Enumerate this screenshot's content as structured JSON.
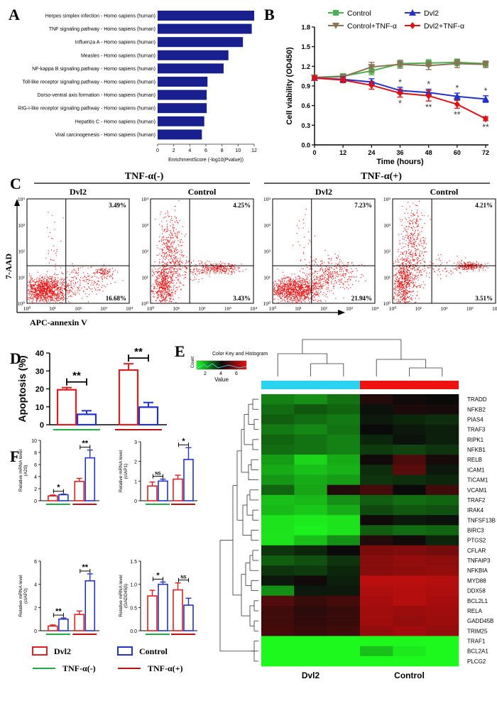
{
  "panel_labels": {
    "A": "A",
    "B": "B",
    "C": "C",
    "D": "D",
    "E": "E",
    "F": "F"
  },
  "chart_data": [
    {
      "id": "A",
      "type": "bar",
      "orientation": "horizontal",
      "categories": [
        "Herpes simplex infection - Homo sapiens (human)",
        "TNF signaling pathway - Homo sapiens (human)",
        "Influenza A - Homo sapiens (human)",
        "Measles - Homo sapiens (human)",
        "NF-kappa B signaling pathway - Homo sapiens (human)",
        "Toll-like receptor signaling pathway - Homo sapiens (human)",
        "Dorso-ventral axis formation - Homo sapiens (human)",
        "RIG-I-like receptor signaling pathway - Homo sapiens (human)",
        "Hepatitis C - Homo sapiens (human)",
        "Viral carcinogenesis - Homo sapiens (human)"
      ],
      "values": [
        12.0,
        11.7,
        10.6,
        8.8,
        8.2,
        6.2,
        6.1,
        6.1,
        5.8,
        5.5
      ],
      "xlabel": "EnrichmentScore (-log10(Pvalue))",
      "xlim": [
        0,
        12
      ],
      "xticks": [
        0,
        2,
        4,
        6,
        8,
        10,
        12
      ],
      "color": "#1a1f8f"
    },
    {
      "id": "B",
      "type": "line",
      "x": [
        0,
        12,
        24,
        36,
        48,
        60,
        72
      ],
      "xlabel": "Time (hours)",
      "ylabel": "Cell viability (OD450)",
      "xlim": [
        0,
        72
      ],
      "ylim": [
        0,
        1.8
      ],
      "yticks": [
        0.0,
        0.3,
        0.6,
        0.9,
        1.2,
        1.5,
        1.8
      ],
      "series": [
        {
          "name": "Control",
          "values": [
            1.03,
            1.05,
            1.13,
            1.24,
            1.25,
            1.26,
            1.24
          ],
          "err": [
            0.03,
            0.03,
            0.06,
            0.05,
            0.05,
            0.05,
            0.04
          ],
          "color": "#4caf50",
          "marker": "square"
        },
        {
          "name": "Control+TNF-α",
          "values": [
            1.03,
            1.04,
            1.19,
            1.23,
            1.21,
            1.24,
            1.23
          ],
          "err": [
            0.03,
            0.03,
            0.07,
            0.06,
            0.06,
            0.06,
            0.05
          ],
          "color": "#8b7355",
          "marker": "triangle-down"
        },
        {
          "name": "Dvl2",
          "values": [
            1.02,
            1.0,
            0.96,
            0.83,
            0.8,
            0.74,
            0.7
          ],
          "err": [
            0.03,
            0.04,
            0.05,
            0.05,
            0.05,
            0.05,
            0.05
          ],
          "color": "#2233cc",
          "marker": "triangle-up"
        },
        {
          "name": "Dvl2+TNF-α",
          "values": [
            1.02,
            0.99,
            0.91,
            0.79,
            0.75,
            0.62,
            0.4
          ],
          "err": [
            0.03,
            0.04,
            0.06,
            0.06,
            0.08,
            0.06,
            0.03
          ],
          "color": "#dd1111",
          "marker": "diamond"
        }
      ],
      "annotations": [
        {
          "x": 36,
          "above": "*",
          "below": "*"
        },
        {
          "x": 48,
          "above": "*",
          "below": "**"
        },
        {
          "x": 60,
          "above": "*",
          "below": "**"
        },
        {
          "x": 72,
          "above": "*",
          "below": "**"
        }
      ]
    },
    {
      "id": "C",
      "type": "scatter",
      "title_neg": "TNF-α(-)",
      "title_pos": "TNF-α(+)",
      "xlabel": "APC-annexin V",
      "ylabel": "7-AAD",
      "axis_ticks": [
        "10⁰",
        "10¹",
        "10²",
        "10³",
        "10⁴"
      ],
      "plots": [
        {
          "label": "Dvl2",
          "upper_right": "3.49%",
          "lower_right": "16.68%"
        },
        {
          "label": "Control",
          "upper_right": "4.25%",
          "lower_right": "3.43%"
        },
        {
          "label": "Dvl2",
          "upper_right": "7.23%",
          "lower_right": "21.94%"
        },
        {
          "label": "Control",
          "upper_right": "4.21%",
          "lower_right": "3.51%"
        }
      ]
    },
    {
      "id": "D",
      "type": "bar",
      "ylabel": "Apoptosis (%)",
      "ylim": [
        0,
        40
      ],
      "yticks": [
        0,
        10,
        20,
        30,
        40
      ],
      "groups": [
        "TNF-α(-)",
        "TNF-α(+)"
      ],
      "series": [
        {
          "name": "Dvl2",
          "values": [
            19.5,
            30.5
          ],
          "err": [
            1.2,
            3.5
          ],
          "color": "#e02020"
        },
        {
          "name": "Control",
          "values": [
            5.8,
            9.8
          ],
          "err": [
            2.0,
            2.6
          ],
          "color": "#2233cc"
        }
      ],
      "significance": [
        "**",
        "**"
      ]
    },
    {
      "id": "E",
      "type": "heatmap",
      "color_key_title": "Color Key and Histogram",
      "color_key_ylabel": "Count",
      "color_key_xlabel": "Value",
      "color_key_ticks": [
        2,
        4,
        6
      ],
      "col_groups": [
        "Dvl2",
        "Control"
      ],
      "genes": [
        "TRADD",
        "NFKB2",
        "PIAS4",
        "TRAF3",
        "RIPK1",
        "NFKB1",
        "RELB",
        "ICAM1",
        "TICAM1",
        "VCAM1",
        "TRAF2",
        "IRAK4",
        "TNFSF13B",
        "BIRC3",
        "PTGS2",
        "CFLAR",
        "TNFAIP3",
        "NFKBIA",
        "MYD88",
        "DDX58",
        "BCL2L1",
        "RELA",
        "GADD45B",
        "TRIM25",
        "TRAF1",
        "BCL2A1",
        "PLCG2"
      ],
      "values": [
        [
          1.8,
          1.6,
          2.0,
          3.9,
          3.6,
          3.5
        ],
        [
          2.1,
          2.4,
          2.2,
          3.4,
          3.8,
          3.7
        ],
        [
          2.3,
          2.1,
          1.9,
          3.3,
          3.1,
          3.0
        ],
        [
          1.9,
          1.7,
          2.0,
          3.5,
          3.3,
          3.2
        ],
        [
          2.2,
          2.0,
          1.8,
          3.1,
          3.4,
          3.2
        ],
        [
          2.1,
          2.0,
          1.8,
          2.8,
          2.7,
          2.9
        ],
        [
          1.4,
          0.6,
          1.2,
          3.6,
          4.5,
          3.7
        ],
        [
          1.2,
          0.9,
          1.1,
          3.0,
          4.7,
          3.3
        ],
        [
          1.5,
          1.2,
          1.4,
          2.9,
          3.0,
          3.1
        ],
        [
          2.2,
          1.3,
          3.9,
          4.4,
          3.5,
          4.3
        ],
        [
          0.9,
          1.0,
          1.6,
          2.3,
          2.1,
          2.2
        ],
        [
          1.0,
          0.8,
          1.2,
          2.6,
          2.4,
          2.5
        ],
        [
          0.4,
          0.3,
          0.4,
          3.6,
          3.3,
          3.4
        ],
        [
          0.4,
          0.2,
          0.4,
          2.3,
          2.1,
          2.2
        ],
        [
          0.4,
          0.9,
          1.6,
          3.9,
          3.6,
          3.1
        ],
        [
          2.9,
          3.1,
          3.5,
          5.2,
          5.3,
          5.1
        ],
        [
          2.3,
          2.5,
          2.9,
          5.4,
          5.6,
          5.5
        ],
        [
          2.9,
          2.8,
          3.1,
          5.4,
          5.5,
          5.6
        ],
        [
          3.3,
          3.6,
          3.2,
          6.2,
          6.2,
          6.1
        ],
        [
          1.6,
          3.3,
          3.3,
          6.0,
          6.1,
          6.0
        ],
        [
          4.6,
          4.2,
          4.4,
          5.9,
          6.1,
          5.9
        ],
        [
          4.3,
          4.0,
          4.2,
          5.8,
          5.7,
          5.8
        ],
        [
          4.3,
          4.1,
          4.2,
          5.8,
          5.6,
          5.7
        ],
        [
          4.4,
          4.2,
          4.3,
          5.6,
          5.8,
          5.6
        ],
        [
          0.1,
          0.1,
          0.1,
          0.1,
          0.1,
          0.1
        ],
        [
          0.1,
          0.1,
          0.1,
          0.9,
          0.3,
          0.1
        ],
        [
          0.1,
          0.1,
          0.1,
          0.1,
          0.1,
          0.1
        ]
      ]
    },
    {
      "id": "F",
      "type": "bar",
      "legend": [
        {
          "name": "Dvl2",
          "color": "#e02020"
        },
        {
          "name": "Control",
          "color": "#2233cc"
        }
      ],
      "group_legend": [
        {
          "name": "TNF-α(-)",
          "color": "#22aa44"
        },
        {
          "name": "TNF-α(+)",
          "color": "#bb1111"
        }
      ],
      "subplots": [
        {
          "ylabel": "Relative mRNA  level",
          "gene": "(A20)",
          "ylim": [
            0,
            10
          ],
          "yticks": [
            0,
            2,
            4,
            6,
            8,
            10
          ],
          "dvl2": [
            0.8,
            3.2
          ],
          "dvl2_err": [
            0.15,
            0.5
          ],
          "control": [
            1.0,
            7.1
          ],
          "control_err": [
            0.1,
            1.3
          ],
          "sig": [
            "*",
            "**"
          ]
        },
        {
          "ylabel": "Relative mRNA  level",
          "gene": "(cIAP1)",
          "ylim": [
            0,
            3
          ],
          "yticks": [
            0,
            1,
            2,
            3
          ],
          "dvl2": [
            0.75,
            1.1
          ],
          "dvl2_err": [
            0.2,
            0.2
          ],
          "control": [
            1.0,
            2.1
          ],
          "control_err": [
            0.1,
            0.6
          ],
          "sig": [
            "NS",
            "*"
          ]
        },
        {
          "ylabel": "Relative mRNA  level",
          "gene": "(cIAP2)",
          "ylim": [
            0,
            6
          ],
          "yticks": [
            0,
            2,
            4,
            6
          ],
          "dvl2": [
            0.4,
            1.4
          ],
          "dvl2_err": [
            0.1,
            0.3
          ],
          "control": [
            1.0,
            4.3
          ],
          "control_err": [
            0.1,
            0.6
          ],
          "sig": [
            "**",
            "**"
          ]
        },
        {
          "ylabel": "Relative mRNA  level",
          "gene": "(GADD45β)",
          "ylim": [
            0,
            1.5
          ],
          "yticks": [
            0.0,
            0.5,
            1.0,
            1.5
          ],
          "dvl2": [
            0.75,
            0.88
          ],
          "dvl2_err": [
            0.12,
            0.15
          ],
          "control": [
            1.0,
            0.55
          ],
          "control_err": [
            0.05,
            0.15
          ],
          "sig": [
            "*",
            "NS"
          ]
        }
      ]
    }
  ]
}
